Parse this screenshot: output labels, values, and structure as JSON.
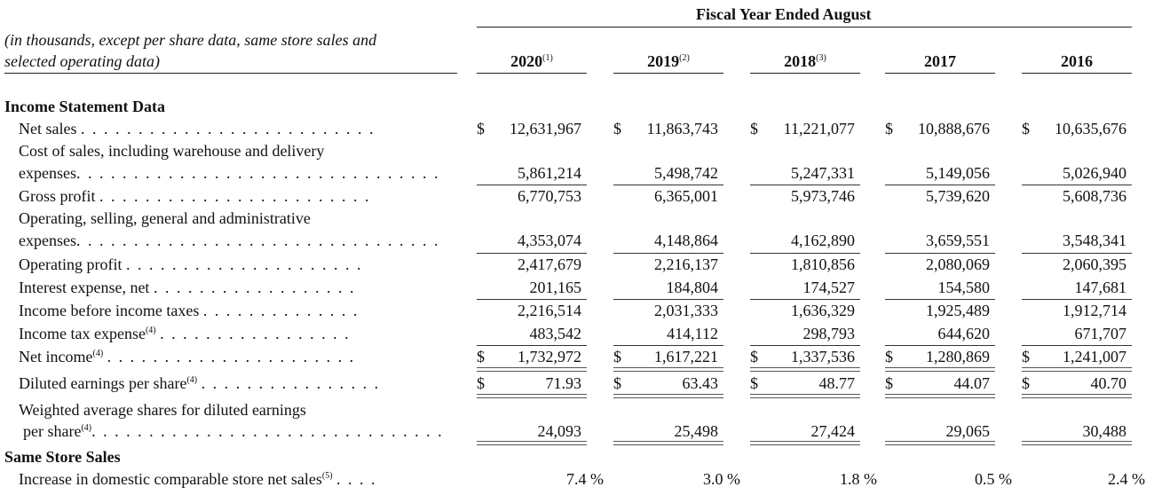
{
  "header": {
    "period_title": "Fiscal Year Ended August",
    "note_line1": "(in thousands, except per share data, same store sales and",
    "note_line2": "selected operating data)"
  },
  "years": [
    {
      "label": "2020",
      "note": "(1)"
    },
    {
      "label": "2019",
      "note": "(2)"
    },
    {
      "label": "2018",
      "note": "(3)"
    },
    {
      "label": "2017",
      "note": ""
    },
    {
      "label": "2016",
      "note": ""
    }
  ],
  "sections": {
    "income_statement": "Income Statement Data",
    "same_store": "Same Store Sales"
  },
  "rows": {
    "net_sales": {
      "label": "Net sales",
      "dots": ". . . . . . . . . . . . . . . . . . . . . . . . . .",
      "values": [
        "12,631,967",
        "11,863,743",
        "11,221,077",
        "10,888,676",
        "10,635,676"
      ]
    },
    "cost_of_sales": {
      "label1": "Cost of sales, including warehouse and delivery",
      "label2": "expenses",
      "dots": ". . . . . . . . . . . . . . . . . . . . . . . . . . . . . . . .",
      "values": [
        "5,861,214",
        "5,498,742",
        "5,247,331",
        "5,149,056",
        "5,026,940"
      ]
    },
    "gross_profit": {
      "label": "Gross profit",
      "dots": ". . . . . . . . . . . . . . . . . . . . . . . .",
      "values": [
        "6,770,753",
        "6,365,001",
        "5,973,746",
        "5,739,620",
        "5,608,736"
      ]
    },
    "osga": {
      "label1": "Operating, selling, general and administrative",
      "label2": "expenses",
      "dots": ". . . . . . . . . . . . . . . . . . . . . . . . . . . . . . . .",
      "values": [
        "4,353,074",
        "4,148,864",
        "4,162,890",
        "3,659,551",
        "3,548,341"
      ]
    },
    "operating_profit": {
      "label": "Operating profit",
      "dots": ". . . . . . . . . . . . . . . . . . . . .",
      "values": [
        "2,417,679",
        "2,216,137",
        "1,810,856",
        "2,080,069",
        "2,060,395"
      ]
    },
    "interest_expense": {
      "label": "Interest expense, net",
      "dots": ". . . . . . . . . . . . . . . . . .",
      "values": [
        "201,165",
        "184,804",
        "174,527",
        "154,580",
        "147,681"
      ]
    },
    "income_before_tax": {
      "label": "Income before income taxes",
      "dots": ". . . . . . . . . . . . . .",
      "values": [
        "2,216,514",
        "2,031,333",
        "1,636,329",
        "1,925,489",
        "1,912,714"
      ]
    },
    "income_tax": {
      "label": "Income tax expense",
      "note": "(4)",
      "dots": ". . . . . . . . . . . . . . . . .",
      "values": [
        "483,542",
        "414,112",
        "298,793",
        "644,620",
        "671,707"
      ]
    },
    "net_income": {
      "label": "Net income",
      "note": "(4)",
      "dots": ". . . . . . . . . . . . . . . . . . . . . .",
      "values": [
        "1,732,972",
        "1,617,221",
        "1,337,536",
        "1,280,869",
        "1,241,007"
      ]
    },
    "diluted_eps": {
      "label": "Diluted earnings per share",
      "note": "(4)",
      "dots": ". . . . . . . . . . . . . . . .",
      "values": [
        "71.93",
        "63.43",
        "48.77",
        "44.07",
        "40.70"
      ]
    },
    "weighted_shares": {
      "label1": "Weighted average shares for diluted earnings",
      "label2": "per share",
      "note": "(4)",
      "dots": ". . . . . . . . . . . . . . . . . . . . . . . . . . . . . . .",
      "values": [
        "24,093",
        "25,498",
        "27,424",
        "29,065",
        "30,488"
      ]
    },
    "comparable_sales": {
      "label": "Increase in domestic comparable store net sales",
      "note": "(5)",
      "dots": ". . . .",
      "values": [
        "7.4 %",
        "3.0 %",
        "1.8 %",
        "0.5 %",
        "2.4 %"
      ]
    }
  },
  "currency_symbol": "$"
}
